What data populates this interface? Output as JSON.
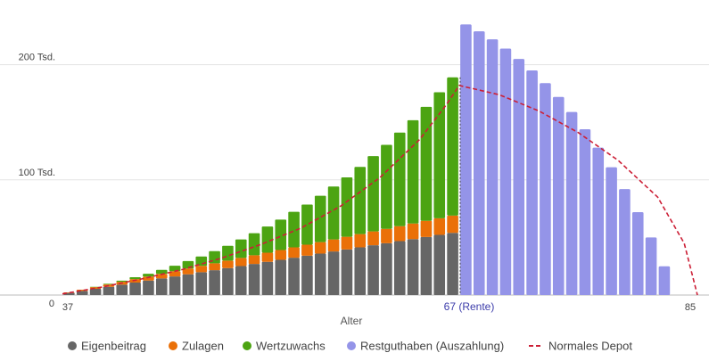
{
  "chart_data": {
    "type": "bar",
    "xlabel": "Alter",
    "x_start": 37,
    "x_end": 85,
    "retirement_age": 67,
    "ylim": [
      0,
      250000
    ],
    "yticks": [
      0,
      100000,
      200000
    ],
    "ytick_labels": [
      "0",
      "100 Tsd.",
      "200 Tsd."
    ],
    "xtick_labels": [
      {
        "age": 37,
        "label": "37"
      },
      {
        "age": 67,
        "label": "67 (Rente)"
      },
      {
        "age": 85,
        "label": "85"
      }
    ],
    "grid": true,
    "legend_position": "bottom",
    "colors": {
      "eigenbeitrag": "#666666",
      "zulagen": "#ea7008",
      "wertzuwachs": "#4ca412",
      "restguthaben": "#9494e8",
      "normales_depot": "#cc1f36",
      "rente_label": "#3c3caa"
    },
    "series": [
      {
        "name": "Eigenbeitrag",
        "key": "eigenbeitrag",
        "values": [
          1800,
          3600,
          5400,
          7200,
          9000,
          10800,
          12600,
          14400,
          16200,
          18000,
          19800,
          21600,
          23400,
          25200,
          27000,
          28800,
          30600,
          32400,
          34200,
          36000,
          37800,
          39600,
          41400,
          43200,
          45000,
          46800,
          48600,
          50400,
          52200,
          54000
        ]
      },
      {
        "name": "Zulagen",
        "key": "zulagen",
        "values": [
          500,
          1000,
          1500,
          2000,
          2500,
          3000,
          3500,
          4000,
          4500,
          5000,
          5500,
          6000,
          6500,
          7000,
          7500,
          8000,
          8500,
          9000,
          9500,
          10000,
          10500,
          11000,
          11500,
          12000,
          12500,
          13000,
          13500,
          14000,
          14500,
          15000
        ]
      },
      {
        "name": "Wertzuwachs",
        "key": "wertzuwachs",
        "values": [
          0,
          0,
          300,
          600,
          1000,
          1700,
          2400,
          3500,
          4700,
          6500,
          8200,
          10500,
          12900,
          16100,
          19200,
          22700,
          26400,
          30900,
          34900,
          40200,
          45900,
          51600,
          58400,
          65400,
          72900,
          81300,
          89700,
          99000,
          109400,
          120000
        ]
      },
      {
        "name": "Restguthaben (Auszahlung)",
        "key": "restguthaben",
        "values": [
          235000,
          229000,
          222000,
          214000,
          205000,
          195000,
          184000,
          172000,
          159000,
          144000,
          128000,
          111000,
          92000,
          72000,
          50000,
          25000,
          0,
          0
        ]
      },
      {
        "name": "Normales Depot",
        "key": "normales_depot",
        "line": true,
        "points": [
          [
            37,
            1000
          ],
          [
            40,
            7000
          ],
          [
            43,
            14000
          ],
          [
            46,
            22000
          ],
          [
            49,
            32000
          ],
          [
            52,
            44000
          ],
          [
            55,
            58000
          ],
          [
            58,
            77000
          ],
          [
            61,
            102000
          ],
          [
            64,
            135000
          ],
          [
            66,
            165000
          ],
          [
            67,
            182000
          ],
          [
            70,
            174000
          ],
          [
            73,
            160000
          ],
          [
            76,
            141000
          ],
          [
            79,
            117000
          ],
          [
            82,
            85000
          ],
          [
            84,
            45000
          ],
          [
            85,
            0
          ]
        ]
      }
    ]
  }
}
